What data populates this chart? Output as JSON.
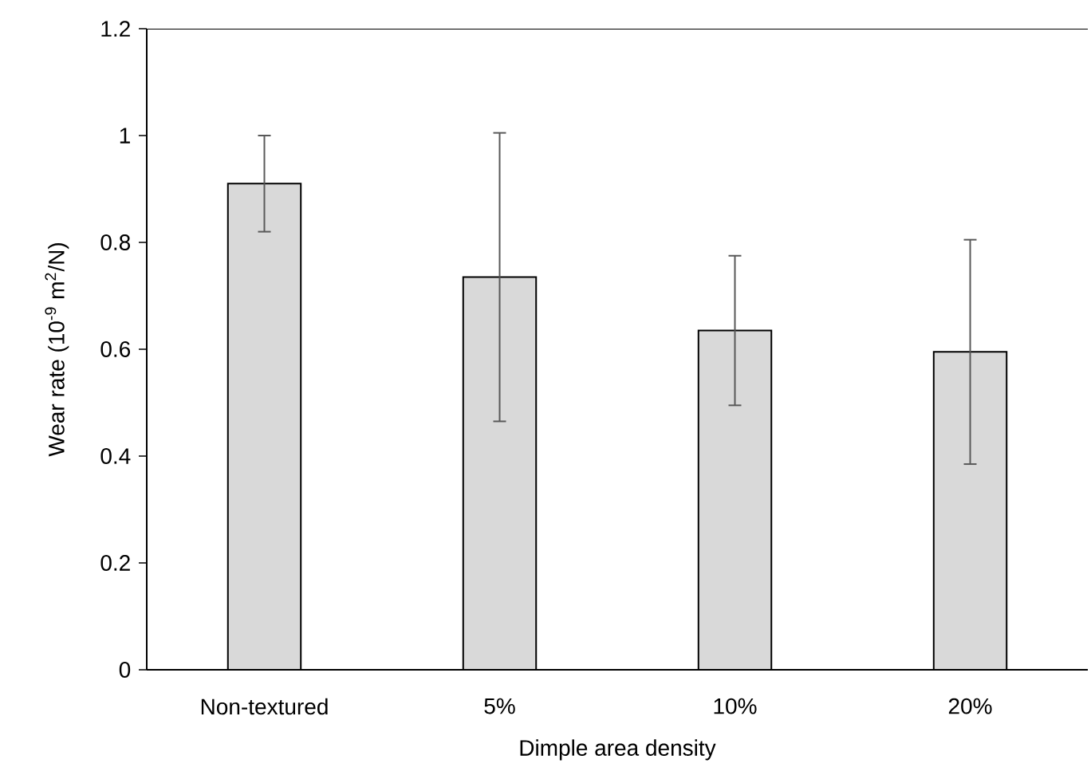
{
  "chart_data": {
    "type": "bar",
    "xlabel": "Dimple area density",
    "ylabel": "Wear rate (10$^{-9}$ m$^{2}$/N)",
    "categories": [
      "Non-textured",
      "5%",
      "10%",
      "20%"
    ],
    "values": [
      0.91,
      0.735,
      0.635,
      0.595
    ],
    "errors": [
      0.09,
      0.27,
      0.14,
      0.21
    ],
    "color": "#d9d9d9",
    "ylim": [
      0,
      1.2
    ],
    "yticks": [
      0,
      0.2,
      0.4,
      0.6,
      0.8,
      1,
      1.2
    ]
  }
}
